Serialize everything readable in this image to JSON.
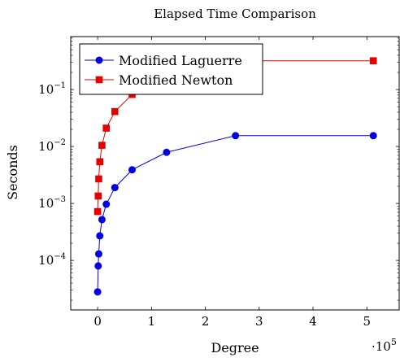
{
  "chart_data": {
    "type": "line",
    "title": "Elapsed Time Comparison",
    "xlabel": "Degree",
    "ylabel": "Seconds",
    "x_multiplier_label": "·10",
    "x_multiplier_exponent": "5",
    "xlim": [
      -50000,
      560000
    ],
    "ylim": [
      1.35e-05,
      0.85
    ],
    "yscale": "log",
    "xticks": [
      0,
      100000,
      200000,
      300000,
      400000,
      500000
    ],
    "xtick_labels": [
      "0",
      "1",
      "2",
      "3",
      "4",
      "5"
    ],
    "yticks": [
      0.0001,
      0.001,
      0.01,
      0.1
    ],
    "ytick_label_base": "10",
    "ytick_label_exponents": [
      "−4",
      "−3",
      "−2",
      "−1"
    ],
    "grid": false,
    "legend_position": "top-left",
    "series": [
      {
        "name": "Modified Laguerre",
        "color": "#0000e6",
        "marker": "circle",
        "x": [
          0,
          1000,
          2000,
          4000,
          8000,
          16000,
          32000,
          64000,
          128000,
          256000,
          512000
        ],
        "y": [
          2.8e-05,
          8e-05,
          0.00013,
          0.00027,
          0.00052,
          0.00097,
          0.0019,
          0.0039,
          0.0079,
          0.0155,
          0.0155
        ]
      },
      {
        "name": "Modified Newton",
        "color": "#e60000",
        "marker": "square",
        "x": [
          0,
          1000,
          2000,
          4000,
          8000,
          16000,
          32000,
          64000,
          128000,
          256000,
          512000
        ],
        "y": [
          0.00072,
          0.00135,
          0.0027,
          0.0054,
          0.0105,
          0.021,
          0.041,
          0.082,
          0.16,
          0.32,
          0.32
        ]
      }
    ]
  }
}
